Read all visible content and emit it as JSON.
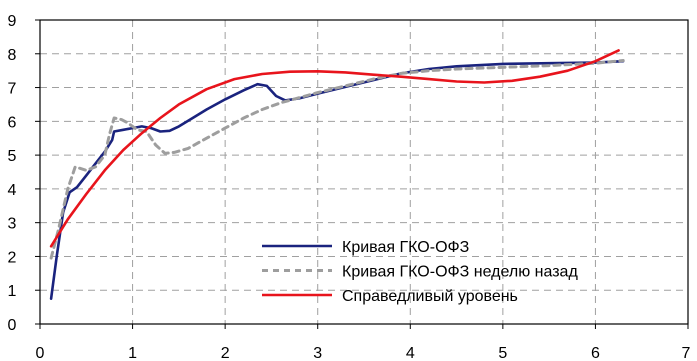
{
  "chart_data": {
    "type": "line",
    "title": "",
    "xlabel": "",
    "ylabel": "",
    "xlim": [
      0,
      7
    ],
    "ylim": [
      0,
      9
    ],
    "x_ticks": [
      "0",
      "1",
      "2",
      "3",
      "4",
      "5",
      "6",
      "7"
    ],
    "y_ticks": [
      "0",
      "1",
      "2",
      "3",
      "4",
      "5",
      "6",
      "7",
      "8",
      "9"
    ],
    "grid": true,
    "legend_position": "bottom-right",
    "series": [
      {
        "name": "Кривая ГКО-ОФЗ",
        "color": "#1a237e",
        "style": "solid",
        "points": [
          [
            0.12,
            0.75
          ],
          [
            0.18,
            2.0
          ],
          [
            0.25,
            3.3
          ],
          [
            0.32,
            3.9
          ],
          [
            0.4,
            4.05
          ],
          [
            0.5,
            4.4
          ],
          [
            0.6,
            4.75
          ],
          [
            0.7,
            5.1
          ],
          [
            0.78,
            5.45
          ],
          [
            0.8,
            5.7
          ],
          [
            0.9,
            5.75
          ],
          [
            1.0,
            5.8
          ],
          [
            1.1,
            5.85
          ],
          [
            1.2,
            5.8
          ],
          [
            1.3,
            5.7
          ],
          [
            1.4,
            5.72
          ],
          [
            1.5,
            5.85
          ],
          [
            1.65,
            6.1
          ],
          [
            1.8,
            6.35
          ],
          [
            2.0,
            6.65
          ],
          [
            2.2,
            6.92
          ],
          [
            2.35,
            7.1
          ],
          [
            2.45,
            7.05
          ],
          [
            2.55,
            6.75
          ],
          [
            2.65,
            6.62
          ],
          [
            2.8,
            6.68
          ],
          [
            3.0,
            6.82
          ],
          [
            3.3,
            7.02
          ],
          [
            3.6,
            7.22
          ],
          [
            3.9,
            7.42
          ],
          [
            4.2,
            7.55
          ],
          [
            4.5,
            7.63
          ],
          [
            5.0,
            7.7
          ],
          [
            5.5,
            7.72
          ],
          [
            6.0,
            7.74
          ],
          [
            6.3,
            7.78
          ]
        ]
      },
      {
        "name": "Кривая ГКО-ОФЗ неделю назад",
        "color": "#9e9e9e",
        "style": "dashed",
        "points": [
          [
            0.12,
            1.95
          ],
          [
            0.2,
            2.8
          ],
          [
            0.3,
            4.0
          ],
          [
            0.38,
            4.65
          ],
          [
            0.5,
            4.55
          ],
          [
            0.6,
            4.65
          ],
          [
            0.7,
            5.0
          ],
          [
            0.75,
            5.6
          ],
          [
            0.8,
            6.1
          ],
          [
            0.88,
            6.05
          ],
          [
            0.95,
            5.95
          ],
          [
            1.05,
            5.75
          ],
          [
            1.15,
            5.7
          ],
          [
            1.25,
            5.3
          ],
          [
            1.35,
            5.05
          ],
          [
            1.45,
            5.08
          ],
          [
            1.6,
            5.2
          ],
          [
            1.8,
            5.5
          ],
          [
            2.0,
            5.8
          ],
          [
            2.2,
            6.1
          ],
          [
            2.4,
            6.35
          ],
          [
            2.6,
            6.55
          ],
          [
            2.8,
            6.7
          ],
          [
            3.0,
            6.85
          ],
          [
            3.3,
            7.05
          ],
          [
            3.6,
            7.25
          ],
          [
            3.9,
            7.42
          ],
          [
            4.2,
            7.5
          ],
          [
            4.5,
            7.55
          ],
          [
            5.0,
            7.6
          ],
          [
            5.5,
            7.65
          ],
          [
            6.0,
            7.72
          ],
          [
            6.3,
            7.8
          ]
        ]
      },
      {
        "name": "Справедливый уровень",
        "color": "#e8141c",
        "style": "solid",
        "points": [
          [
            0.12,
            2.3
          ],
          [
            0.3,
            3.1
          ],
          [
            0.5,
            3.85
          ],
          [
            0.7,
            4.55
          ],
          [
            0.9,
            5.15
          ],
          [
            1.1,
            5.65
          ],
          [
            1.3,
            6.1
          ],
          [
            1.5,
            6.5
          ],
          [
            1.8,
            6.95
          ],
          [
            2.1,
            7.25
          ],
          [
            2.4,
            7.4
          ],
          [
            2.7,
            7.47
          ],
          [
            3.0,
            7.48
          ],
          [
            3.3,
            7.45
          ],
          [
            3.6,
            7.38
          ],
          [
            3.9,
            7.32
          ],
          [
            4.2,
            7.25
          ],
          [
            4.5,
            7.18
          ],
          [
            4.8,
            7.15
          ],
          [
            5.1,
            7.2
          ],
          [
            5.4,
            7.32
          ],
          [
            5.7,
            7.5
          ],
          [
            6.0,
            7.78
          ],
          [
            6.25,
            8.1
          ]
        ]
      }
    ]
  }
}
